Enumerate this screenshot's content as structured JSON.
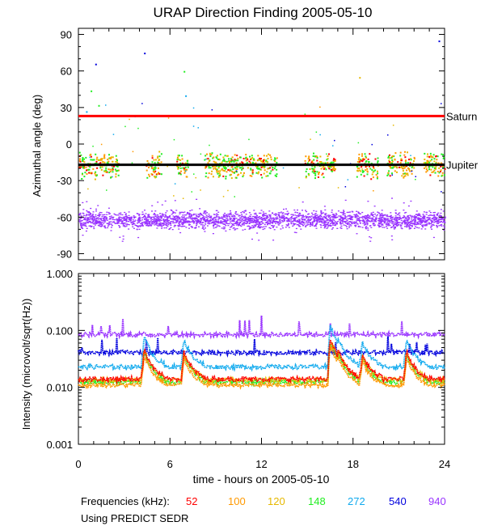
{
  "title": "URAP Direction Finding  2005-05-10",
  "xlabel": "time - hours on 2005-05-10",
  "footer": {
    "freq_label": "Frequencies (kHz):",
    "source_note": "Using PREDICT SEDR"
  },
  "colors": {
    "f52": "#ff0000",
    "f100": "#ff9900",
    "f120": "#e6b800",
    "f148": "#22ee22",
    "f272": "#11aaee",
    "f540": "#0000dd",
    "f940": "#9933ff",
    "saturn_line": "#ff0000",
    "jupiter_line": "#000000"
  },
  "chart_data": [
    {
      "type": "scatter",
      "title": "URAP Direction Finding  2005-05-10",
      "ylabel": "Azimuthal angle (deg)",
      "xlabel": "",
      "xlim": [
        0,
        24
      ],
      "ylim": [
        -95,
        95
      ],
      "xticks": [
        0,
        6,
        12,
        18,
        24
      ],
      "yticks": [
        90,
        60,
        30,
        0,
        -30,
        -60,
        -90
      ],
      "reference_lines": [
        {
          "name": "Saturn",
          "y": 23
        },
        {
          "name": "Jupiter",
          "y": -17
        }
      ],
      "series": [
        {
          "name": "940",
          "band_center": -62,
          "band_width": 16
        },
        {
          "name": "52"
        },
        {
          "name": "100"
        },
        {
          "name": "120"
        },
        {
          "name": "148"
        },
        {
          "name": "272"
        },
        {
          "name": "540"
        }
      ],
      "activity_windows_hours": [
        [
          0,
          2.6
        ],
        [
          4.4,
          5.4
        ],
        [
          6.4,
          7.2
        ],
        [
          8.2,
          13.0
        ],
        [
          14.8,
          16.8
        ],
        [
          18.2,
          19.6
        ],
        [
          20.2,
          22.0
        ],
        [
          22.6,
          24
        ]
      ],
      "outliers": [
        {
          "x": 1.1,
          "y": 66
        },
        {
          "x": 4.3,
          "y": 75
        },
        {
          "x": 6.9,
          "y": 60
        },
        {
          "x": 23.6,
          "y": 85
        },
        {
          "x": 18.4,
          "y": 55
        },
        {
          "x": 0.8,
          "y": 44
        },
        {
          "x": 7.0,
          "y": 40
        },
        {
          "x": 1.3,
          "y": 32
        },
        {
          "x": 0.5,
          "y": 27
        }
      ],
      "grid": false
    },
    {
      "type": "line",
      "ylabel": "Intensity (microvolt/sqrt(Hz))",
      "xlabel": "time - hours on 2005-05-10",
      "xlim": [
        0,
        24
      ],
      "ylim": [
        0.001,
        1.0
      ],
      "yscale": "log",
      "xticks": [
        0,
        6,
        12,
        18,
        24
      ],
      "ytick_labels": [
        "1.000",
        "0.100",
        "0.010",
        "0.001"
      ],
      "series": [
        {
          "name": "940",
          "baseline": 0.085
        },
        {
          "name": "540",
          "baseline": 0.041
        },
        {
          "name": "272",
          "baseline": 0.023
        },
        {
          "name": "148",
          "baseline": 0.0125
        },
        {
          "name": "120",
          "baseline": 0.0135
        },
        {
          "name": "100",
          "baseline": 0.011
        },
        {
          "name": "52",
          "baseline": 0.014
        }
      ],
      "bursts": [
        {
          "x": 4.3,
          "peak": 0.07
        },
        {
          "x": 6.9,
          "peak": 0.06
        },
        {
          "x": 16.5,
          "peak": 0.13
        },
        {
          "x": 17.0,
          "peak": 0.07
        },
        {
          "x": 18.6,
          "peak": 0.05
        },
        {
          "x": 21.5,
          "peak": 0.06
        }
      ],
      "grid": false
    }
  ],
  "frequencies": [
    {
      "label": "52",
      "color": "#ff0000"
    },
    {
      "label": "100",
      "color": "#ff9900"
    },
    {
      "label": "120",
      "color": "#e6b800"
    },
    {
      "label": "148",
      "color": "#22ee22"
    },
    {
      "label": "272",
      "color": "#11aaee"
    },
    {
      "label": "540",
      "color": "#0000dd"
    },
    {
      "label": "940",
      "color": "#9933ff"
    }
  ]
}
